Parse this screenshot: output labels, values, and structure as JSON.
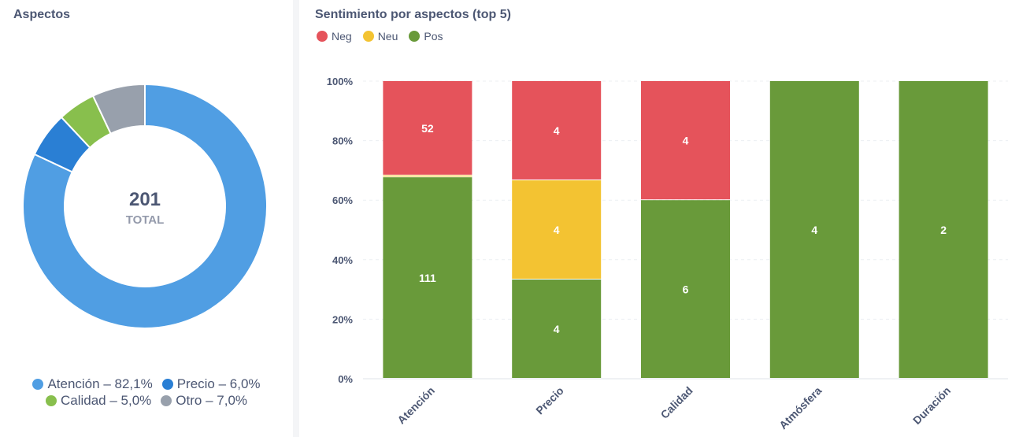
{
  "left": {
    "title": "Aspectos",
    "total_value": "201",
    "total_label": "TOTAL"
  },
  "right": {
    "title": "Sentimiento por aspectos (top 5)"
  },
  "colors": {
    "atencion": "#509ee3",
    "precio": "#2a7fd4",
    "calidad": "#88bf4d",
    "otro": "#98a0ac",
    "neg": "#e5535b",
    "neu": "#f3c332",
    "pos": "#699a3a"
  },
  "chart_data": [
    {
      "type": "pie",
      "title": "Aspectos",
      "total": 201,
      "slices": [
        {
          "label": "Atención",
          "value": 82.1,
          "legend": "Atención – 82,1%",
          "color_key": "atencion"
        },
        {
          "label": "Precio",
          "value": 6.0,
          "legend": "Precio – 6,0%",
          "color_key": "precio"
        },
        {
          "label": "Calidad",
          "value": 5.0,
          "legend": "Calidad – 5,0%",
          "color_key": "calidad"
        },
        {
          "label": "Otro",
          "value": 7.0,
          "legend": "Otro – 7,0%",
          "color_key": "otro"
        }
      ]
    },
    {
      "type": "bar",
      "stacked": "percent",
      "title": "Sentimiento por aspectos (top 5)",
      "categories": [
        "Atención",
        "Precio",
        "Calidad",
        "Atmósfera",
        "Duración"
      ],
      "series": [
        {
          "name": "Neg",
          "color_key": "neg",
          "values": [
            52,
            4,
            4,
            0,
            0
          ]
        },
        {
          "name": "Neu",
          "color_key": "neu",
          "values": [
            1,
            4,
            0,
            0,
            0
          ]
        },
        {
          "name": "Pos",
          "color_key": "pos",
          "values": [
            111,
            4,
            6,
            4,
            2
          ]
        }
      ],
      "ylim": [
        0,
        100
      ],
      "yticks": [
        "0%",
        "20%",
        "40%",
        "60%",
        "80%",
        "100%"
      ],
      "legend": "top-left",
      "grid": true
    }
  ]
}
